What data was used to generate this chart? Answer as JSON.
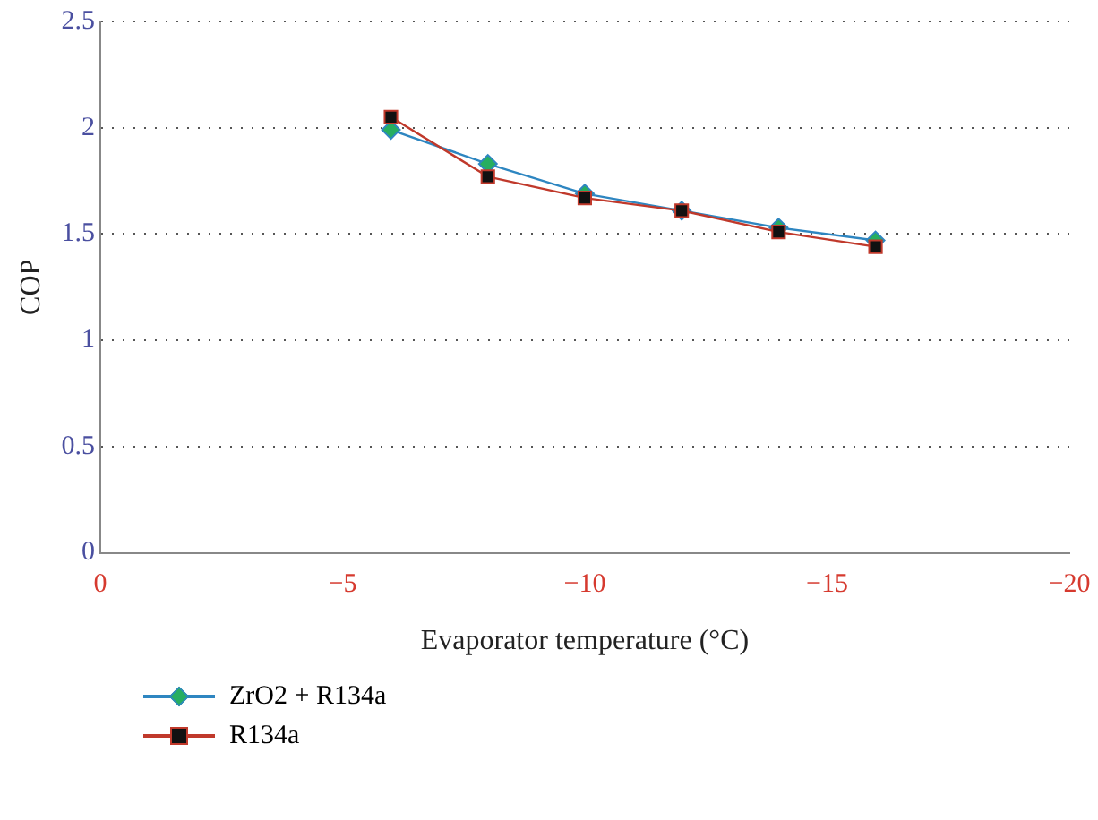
{
  "chart_data": {
    "type": "line",
    "xlabel": "Evaporator temperature (°C)",
    "ylabel": "COP",
    "x": [
      -6,
      -8,
      -10,
      -12,
      -14,
      -16
    ],
    "series": [
      {
        "name": "ZrO2 + R134a",
        "color": "#2e86c1",
        "marker": "diamond",
        "values": [
          1.99,
          1.83,
          1.69,
          1.61,
          1.53,
          1.47
        ]
      },
      {
        "name": "R134a",
        "color": "#c0392b",
        "marker": "square",
        "values": [
          2.05,
          1.77,
          1.67,
          1.61,
          1.51,
          1.44
        ]
      }
    ],
    "xlim": [
      0,
      -20
    ],
    "xticks": [
      0,
      -5,
      -10,
      -15,
      -20
    ],
    "ylim": [
      0,
      2.5
    ],
    "yticks": [
      0,
      0.5,
      1,
      1.5,
      2,
      2.5
    ],
    "grid": "y",
    "legend": "bottom left"
  }
}
